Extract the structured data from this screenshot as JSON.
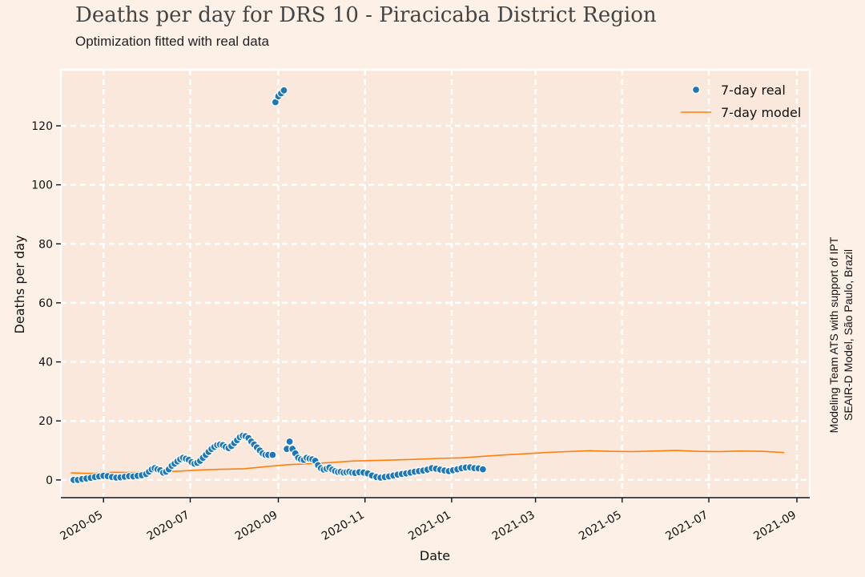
{
  "header": {
    "title": "Deaths per day for DRS 10 - Piracicaba District Region",
    "subtitle": "Optimization fitted with real data"
  },
  "side_note": {
    "line1": "Modeling Team ATS with support of IPT",
    "line2": "SEAIR-D Model, São Paulo, Brazil"
  },
  "colors": {
    "background": "#fdf1e7",
    "plot_background": "#fae8dc",
    "grid": "#ffffff",
    "real": "#1f77b4",
    "model": "#ff7f0e"
  },
  "chart_data": {
    "type": "scatter",
    "xlabel": "Date",
    "ylabel": "Deaths per day",
    "x_ticks": [
      "2020-05",
      "2020-07",
      "2020-09",
      "2020-11",
      "2021-01",
      "2021-03",
      "2021-05",
      "2021-07",
      "2021-09"
    ],
    "y_ticks": [
      0,
      20,
      40,
      60,
      80,
      100,
      120
    ],
    "xlim": [
      "2020-04-01",
      "2021-09-10"
    ],
    "ylim": [
      -6,
      139
    ],
    "grid": true,
    "legend_position": "top-right",
    "series": [
      {
        "name": "7-day real",
        "style": "points",
        "x": [
          "2020-04-10",
          "2020-04-13",
          "2020-04-16",
          "2020-04-19",
          "2020-04-22",
          "2020-04-25",
          "2020-04-28",
          "2020-05-01",
          "2020-05-04",
          "2020-05-07",
          "2020-05-10",
          "2020-05-13",
          "2020-05-16",
          "2020-05-19",
          "2020-05-22",
          "2020-05-25",
          "2020-05-28",
          "2020-05-31",
          "2020-06-02",
          "2020-06-04",
          "2020-06-06",
          "2020-06-08",
          "2020-06-10",
          "2020-06-12",
          "2020-06-14",
          "2020-06-16",
          "2020-06-18",
          "2020-06-20",
          "2020-06-22",
          "2020-06-24",
          "2020-06-26",
          "2020-06-28",
          "2020-06-30",
          "2020-07-02",
          "2020-07-04",
          "2020-07-06",
          "2020-07-08",
          "2020-07-10",
          "2020-07-12",
          "2020-07-14",
          "2020-07-16",
          "2020-07-18",
          "2020-07-20",
          "2020-07-22",
          "2020-07-24",
          "2020-07-26",
          "2020-07-28",
          "2020-07-30",
          "2020-08-01",
          "2020-08-03",
          "2020-08-05",
          "2020-08-07",
          "2020-08-09",
          "2020-08-11",
          "2020-08-13",
          "2020-08-15",
          "2020-08-17",
          "2020-08-19",
          "2020-08-21",
          "2020-08-23",
          "2020-08-25",
          "2020-08-28",
          "2020-08-30",
          "2020-09-01",
          "2020-09-03",
          "2020-09-05",
          "2020-09-07",
          "2020-09-09",
          "2020-09-11",
          "2020-09-13",
          "2020-09-15",
          "2020-09-17",
          "2020-09-19",
          "2020-09-21",
          "2020-09-23",
          "2020-09-25",
          "2020-09-27",
          "2020-09-29",
          "2020-10-01",
          "2020-10-03",
          "2020-10-05",
          "2020-10-07",
          "2020-10-09",
          "2020-10-11",
          "2020-10-13",
          "2020-10-15",
          "2020-10-17",
          "2020-10-19",
          "2020-10-21",
          "2020-10-23",
          "2020-10-25",
          "2020-10-28",
          "2020-10-31",
          "2020-11-03",
          "2020-11-06",
          "2020-11-09",
          "2020-11-12",
          "2020-11-15",
          "2020-11-18",
          "2020-11-21",
          "2020-11-24",
          "2020-11-27",
          "2020-11-30",
          "2020-12-03",
          "2020-12-06",
          "2020-12-09",
          "2020-12-12",
          "2020-12-15",
          "2020-12-18",
          "2020-12-21",
          "2020-12-24",
          "2020-12-27",
          "2020-12-30",
          "2021-01-02",
          "2021-01-05",
          "2021-01-08",
          "2021-01-11",
          "2021-01-14",
          "2021-01-17",
          "2021-01-20",
          "2021-01-23"
        ],
        "y": [
          0,
          0,
          0.3,
          0.5,
          0.7,
          1,
          1.2,
          1.4,
          1.3,
          1,
          0.8,
          0.9,
          1.1,
          1.3,
          1.2,
          1.4,
          1.6,
          2,
          2.8,
          3.6,
          4,
          3.6,
          3.3,
          2.5,
          2.8,
          3.6,
          4.8,
          5.5,
          6.3,
          7,
          7.5,
          7.2,
          6.8,
          6,
          5.5,
          5.8,
          6.5,
          7.5,
          8.5,
          9.5,
          10.5,
          11.2,
          11.8,
          12,
          11.8,
          11.2,
          10.8,
          11.5,
          12.5,
          13.5,
          14.5,
          15,
          14.8,
          14.2,
          13,
          12,
          11,
          10,
          9,
          8.5,
          8.5,
          8.5,
          128,
          130,
          131,
          132,
          10.5,
          13,
          10.5,
          9,
          7.5,
          7,
          6.8,
          7.5,
          7.2,
          7,
          6.5,
          5,
          4,
          3.5,
          3.8,
          4.2,
          3.5,
          3,
          2.7,
          2.8,
          2.5,
          2.6,
          2.8,
          2.5,
          2.4,
          2.6,
          2.5,
          2.2,
          1.5,
          1,
          0.8,
          1,
          1.2,
          1.5,
          1.8,
          2,
          2.2,
          2.5,
          2.8,
          3,
          3.2,
          3.5,
          4,
          3.8,
          3.5,
          3.2,
          3,
          3.3,
          3.6,
          4,
          4.2,
          4.3,
          4,
          3.9,
          3.6
        ]
      },
      {
        "name": "7-day model",
        "style": "line",
        "x": [
          "2020-04-08",
          "2020-04-23",
          "2020-05-08",
          "2020-05-23",
          "2020-06-08",
          "2020-06-23",
          "2020-07-08",
          "2020-07-23",
          "2020-08-08",
          "2020-08-23",
          "2020-09-08",
          "2020-09-23",
          "2020-10-08",
          "2020-10-23",
          "2020-11-08",
          "2020-11-23",
          "2020-12-08",
          "2020-12-23",
          "2021-01-08",
          "2021-01-23",
          "2021-02-08",
          "2021-02-23",
          "2021-03-08",
          "2021-03-23",
          "2021-04-08",
          "2021-04-23",
          "2021-05-08",
          "2021-05-23",
          "2021-06-08",
          "2021-06-23",
          "2021-07-08",
          "2021-07-23",
          "2021-08-08",
          "2021-08-23"
        ],
        "y": [
          2.4,
          2.2,
          2.6,
          2.5,
          2.7,
          3.0,
          3.4,
          3.6,
          3.8,
          4.5,
          5.2,
          5.5,
          5.9,
          6.4,
          6.6,
          6.8,
          7.0,
          7.3,
          7.5,
          8.0,
          8.5,
          8.9,
          9.3,
          9.6,
          9.9,
          9.7,
          9.6,
          9.8,
          10.0,
          9.7,
          9.6,
          9.8,
          9.7,
          9.3
        ]
      }
    ]
  }
}
